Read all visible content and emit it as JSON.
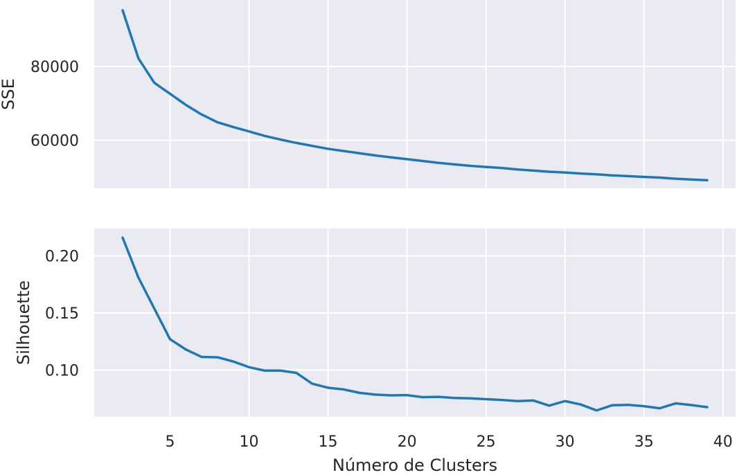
{
  "chart_data": [
    {
      "type": "line",
      "ylabel": "SSE",
      "xlabel": "",
      "xlim": [
        0.2,
        40.8
      ],
      "ylim": [
        47000,
        98000
      ],
      "xticks": [
        5,
        10,
        15,
        20,
        25,
        30,
        35,
        40
      ],
      "yticks": [
        60000,
        80000
      ],
      "ytick_labels": [
        "60000",
        "80000"
      ],
      "xtick_labels_visible": false,
      "grid": true,
      "line_color": "#1f77b4",
      "background": "#eaeaf2",
      "series": [
        {
          "x": [
            2,
            3,
            4,
            5,
            6,
            7,
            8,
            9,
            10,
            11,
            12,
            13,
            14,
            15,
            16,
            17,
            18,
            19,
            20,
            21,
            22,
            23,
            24,
            25,
            26,
            27,
            28,
            29,
            30,
            31,
            32,
            33,
            34,
            35,
            36,
            37,
            38,
            39
          ],
          "values": [
            95200,
            82200,
            75600,
            72600,
            69600,
            67000,
            64900,
            63600,
            62400,
            61200,
            60200,
            59300,
            58500,
            57700,
            57100,
            56500,
            55900,
            55400,
            54900,
            54400,
            53900,
            53500,
            53100,
            52800,
            52500,
            52100,
            51800,
            51500,
            51300,
            51000,
            50800,
            50500,
            50300,
            50100,
            49900,
            49600,
            49400,
            49200
          ]
        }
      ]
    },
    {
      "type": "line",
      "ylabel": "Silhouette",
      "xlabel": "Número de Clusters",
      "xlim": [
        0.2,
        40.8
      ],
      "ylim": [
        0.059,
        0.224
      ],
      "xticks": [
        5,
        10,
        15,
        20,
        25,
        30,
        35,
        40
      ],
      "xtick_labels": [
        "5",
        "10",
        "15",
        "20",
        "25",
        "30",
        "35",
        "40"
      ],
      "yticks": [
        0.1,
        0.15,
        0.2
      ],
      "ytick_labels": [
        "0.10",
        "0.15",
        "0.20"
      ],
      "grid": true,
      "line_color": "#1f77b4",
      "background": "#eaeaf2",
      "series": [
        {
          "x": [
            2,
            3,
            4,
            5,
            6,
            7,
            8,
            9,
            10,
            11,
            12,
            13,
            14,
            15,
            16,
            17,
            18,
            19,
            20,
            21,
            22,
            23,
            24,
            25,
            26,
            27,
            28,
            29,
            30,
            31,
            32,
            33,
            34,
            35,
            36,
            37,
            38,
            39
          ],
          "values": [
            0.216,
            0.181,
            0.154,
            0.127,
            0.118,
            0.1115,
            0.1112,
            0.1075,
            0.1025,
            0.0995,
            0.0995,
            0.0975,
            0.088,
            0.0845,
            0.083,
            0.08,
            0.0785,
            0.0778,
            0.078,
            0.0762,
            0.0765,
            0.0755,
            0.0752,
            0.0745,
            0.0738,
            0.0728,
            0.0733,
            0.0688,
            0.0728,
            0.0698,
            0.0646,
            0.0692,
            0.0695,
            0.0683,
            0.0665,
            0.0708,
            0.0693,
            0.0675
          ]
        }
      ]
    }
  ]
}
